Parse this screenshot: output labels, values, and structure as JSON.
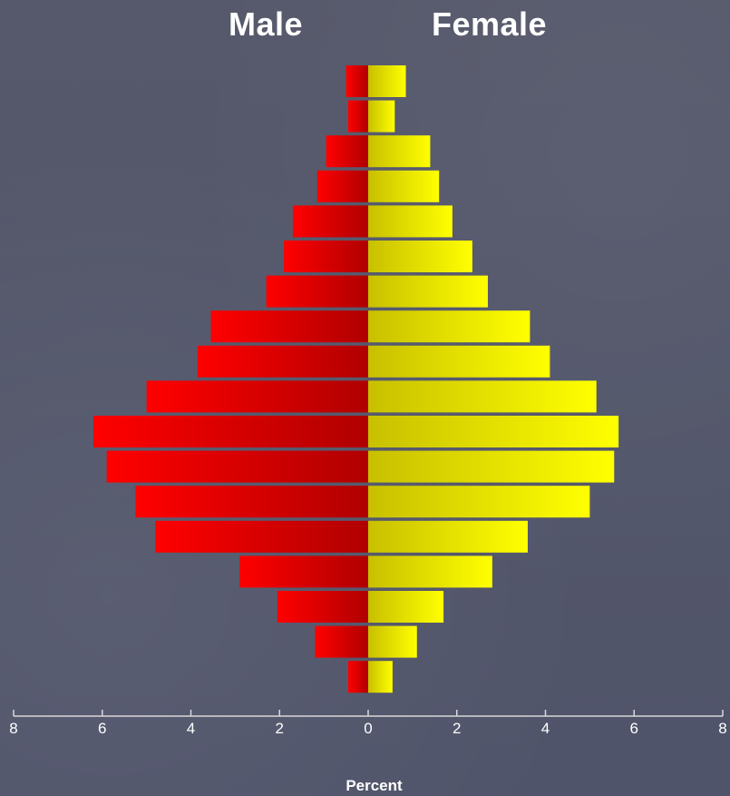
{
  "headers": {
    "male": "Male",
    "female": "Female"
  },
  "colors": {
    "background": "#545869",
    "male_light": "#ff0000",
    "male_dark": "#b00000",
    "female_light": "#ffff00",
    "female_dark": "#c8c000",
    "axis": "#d8d8d8",
    "text": "#ffffff"
  },
  "chart_data": {
    "type": "bar",
    "orientation": "horizontal",
    "subtype": "population-pyramid",
    "title": "",
    "xlabel": "Percent",
    "ylabel": "",
    "xlim": [
      -8,
      8
    ],
    "xticks": [
      -8,
      -6,
      -4,
      -2,
      0,
      2,
      4,
      6,
      8
    ],
    "xtick_labels": [
      "8",
      "6",
      "4",
      "2",
      "0",
      "2",
      "4",
      "6",
      "8"
    ],
    "grid": false,
    "legend": "none",
    "bars_order": "top-to-bottom",
    "series": [
      {
        "name": "Male",
        "values": [
          0.5,
          0.45,
          0.95,
          1.15,
          1.7,
          1.9,
          2.3,
          3.55,
          3.85,
          5.0,
          6.2,
          5.9,
          5.25,
          4.8,
          2.9,
          2.05,
          1.2,
          0.45
        ]
      },
      {
        "name": "Female",
        "values": [
          0.85,
          0.6,
          1.4,
          1.6,
          1.9,
          2.35,
          2.7,
          3.65,
          4.1,
          5.15,
          5.65,
          5.55,
          5.0,
          3.6,
          2.8,
          1.7,
          1.1,
          0.55
        ]
      }
    ]
  }
}
